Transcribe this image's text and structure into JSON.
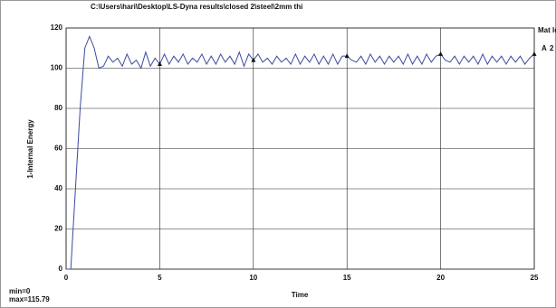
{
  "chart_data": {
    "type": "line",
    "title": "C:\\Users\\hari\\Desktop\\LS-Dyna results\\closed 2\\steel\\2mm thi",
    "x_label": "Time",
    "y_label": "1-Internal Energy",
    "min_label": "min=0",
    "max_label": "max=115.79",
    "legend_title": "Mat Id",
    "grid": true,
    "xlim": [
      0,
      25
    ],
    "ylim": [
      0,
      120
    ],
    "xticks": [
      0,
      5,
      10,
      15,
      20,
      25
    ],
    "yticks": [
      0,
      20,
      40,
      60,
      80,
      100,
      120
    ],
    "x": [
      0,
      0.25,
      0.5,
      0.75,
      1,
      1.25,
      1.5,
      1.75,
      2,
      2.25,
      2.5,
      2.75,
      3,
      3.25,
      3.5,
      3.75,
      4,
      4.25,
      4.5,
      4.75,
      5,
      5.25,
      5.5,
      5.75,
      6,
      6.25,
      6.5,
      6.75,
      7,
      7.25,
      7.5,
      7.75,
      8,
      8.25,
      8.5,
      8.75,
      9,
      9.25,
      9.5,
      9.75,
      10,
      10.25,
      10.5,
      10.75,
      11,
      11.25,
      11.5,
      11.75,
      12,
      12.25,
      12.5,
      12.75,
      13,
      13.25,
      13.5,
      13.75,
      14,
      14.25,
      14.5,
      14.75,
      15,
      15.25,
      15.5,
      15.75,
      16,
      16.25,
      16.5,
      16.75,
      17,
      17.25,
      17.5,
      17.75,
      18,
      18.25,
      18.5,
      18.75,
      19,
      19.25,
      19.5,
      19.75,
      20,
      20.25,
      20.5,
      20.75,
      21,
      21.25,
      21.5,
      21.75,
      22,
      22.25,
      22.5,
      22.75,
      23,
      23.25,
      23.5,
      23.75,
      24,
      24.25,
      24.5,
      24.75,
      25
    ],
    "series": [
      {
        "name": "2",
        "symbol": "A",
        "color": "#3b4a9e",
        "values": [
          0,
          0,
          40,
          80,
          110,
          115.79,
          110,
          100,
          101,
          106,
          103,
          105,
          101,
          107,
          102,
          104,
          100,
          108,
          101,
          105,
          102,
          107,
          102,
          106,
          103,
          107,
          102,
          105,
          103,
          107,
          102,
          106,
          102,
          107,
          103,
          106,
          102,
          108,
          101,
          107,
          104,
          107,
          103,
          105,
          102,
          106,
          103,
          105,
          102,
          107,
          102,
          106,
          103,
          107,
          102,
          106,
          102,
          107,
          102,
          106,
          106,
          104,
          103,
          106,
          102,
          107,
          103,
          106,
          102,
          106,
          103,
          106,
          102,
          107,
          102,
          106,
          102,
          107,
          103,
          106,
          107,
          104,
          103,
          106,
          102,
          106,
          103,
          106,
          102,
          107,
          102,
          106,
          103,
          106,
          102,
          106,
          103,
          106,
          102,
          105,
          107
        ]
      }
    ]
  }
}
